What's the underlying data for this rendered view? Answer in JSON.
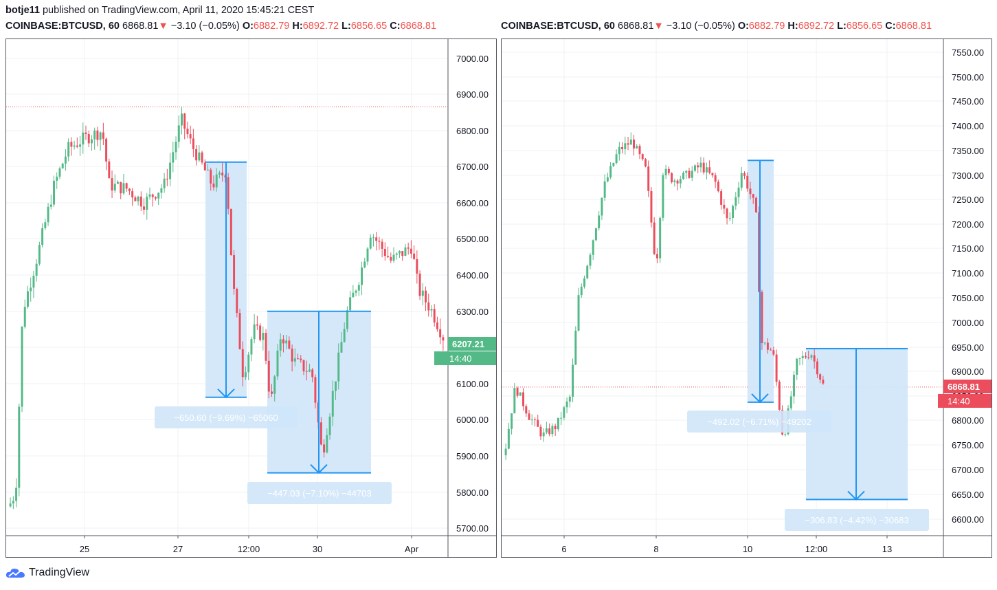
{
  "publisher": {
    "user": "botje11",
    "text": " published on TradingView.com, April 11, 2020 15:45:21 CEST"
  },
  "brand": "TradingView",
  "colors": {
    "up": "#53b987",
    "down": "#eb4d5c",
    "tool": "#2196f3",
    "tool_fill": "#cfe5fa",
    "grid": "#eef0f3"
  },
  "chart_data": [
    {
      "type": "candlestick",
      "legend": {
        "symbol": "COINBASE:BTCUSD, 60",
        "last": "6868.81",
        "arrow": "▼",
        "change": "−3.10 (−0.05%)",
        "o_label": "O:",
        "o": "6882.79",
        "h_label": "H:",
        "h": "6892.72",
        "l_label": "L:",
        "l": "6856.65",
        "c_label": "C:",
        "c": "6868.81"
      },
      "ylim": [
        5680,
        7030
      ],
      "y_ticks": [
        "7000.00",
        "6900.00",
        "6800.00",
        "6700.00",
        "6600.00",
        "6500.00",
        "6400.00",
        "6300.00",
        "6200.00",
        "6100.00",
        "6000.00",
        "5900.00",
        "5800.00",
        "5700.00"
      ],
      "x_ticks": [
        "25",
        "27",
        "12:00",
        "30",
        "Apr"
      ],
      "price_label": "6207.21",
      "timer_label": "14:40",
      "dotted_line": 6866,
      "measures": [
        {
          "label": "−650.60 (−9.69%) −65060",
          "top": 6713,
          "bottom": 6062
        },
        {
          "label": "−447.03 (−7.10%) −44703",
          "top": 6300,
          "bottom": 5853
        }
      ]
    },
    {
      "type": "candlestick",
      "legend": {
        "symbol": "COINBASE:BTCUSD, 60",
        "last": "6868.81",
        "arrow": "▼",
        "change": "−3.10 (−0.05%)",
        "o_label": "O:",
        "o": "6882.79",
        "h_label": "H:",
        "h": "6892.72",
        "l_label": "L:",
        "l": "6856.65",
        "c_label": "C:",
        "c": "6868.81"
      },
      "ylim": [
        6570,
        7580
      ],
      "y_ticks": [
        "7550.00",
        "7500.00",
        "7450.00",
        "7400.00",
        "7350.00",
        "7300.00",
        "7250.00",
        "7200.00",
        "7150.00",
        "7100.00",
        "7050.00",
        "7000.00",
        "6950.00",
        "6900.00",
        "6850.00",
        "6800.00",
        "6750.00",
        "6700.00",
        "6650.00",
        "6600.00"
      ],
      "x_ticks": [
        "6",
        "8",
        "10",
        "12:00",
        "13"
      ],
      "price_label": "6868.81",
      "timer_label": "14:40",
      "dotted_line": 6868.81,
      "measures": [
        {
          "label": "−492.02 (−6.71%) −49202",
          "top": 7330,
          "bottom": 6838
        },
        {
          "label": "−306.83 (−4.42%) −30683",
          "top": 6947,
          "bottom": 6640
        }
      ]
    }
  ]
}
